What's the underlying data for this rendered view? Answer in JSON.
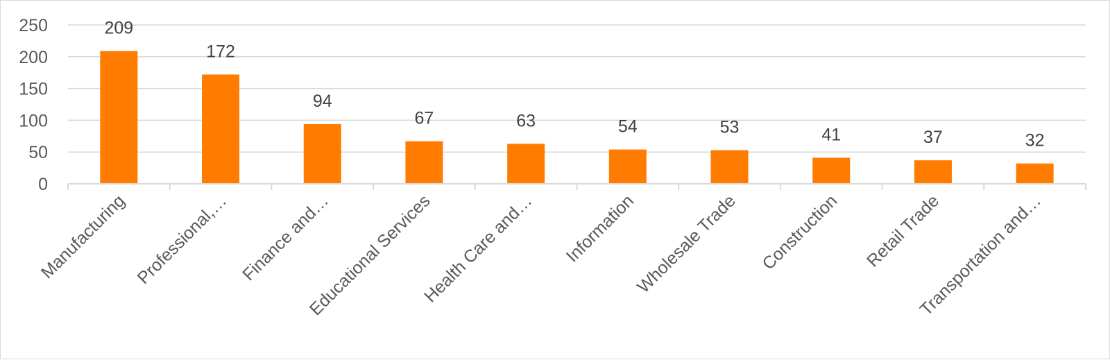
{
  "chart_data": {
    "type": "bar",
    "title": "",
    "xlabel": "",
    "ylabel": "",
    "categories": [
      "Manufacturing",
      "Professional,…",
      "Finance and…",
      "Educational Services",
      "Health Care and…",
      "Information",
      "Wholesale Trade",
      "Construction",
      "Retail Trade",
      "Transportation and…"
    ],
    "values": [
      209,
      172,
      94,
      67,
      63,
      54,
      53,
      41,
      37,
      32
    ],
    "data_labels": [
      "209",
      "172",
      "94",
      "67",
      "63",
      "54",
      "53",
      "41",
      "37",
      "32"
    ],
    "ylim": [
      0,
      250
    ],
    "yticks": [
      0,
      50,
      100,
      150,
      200,
      250
    ],
    "ytick_labels": [
      "0",
      "50",
      "100",
      "150",
      "200",
      "250"
    ],
    "grid": true,
    "legend": "none",
    "colors": {
      "bar": "#ff7c00",
      "grid": "#d9d9d9",
      "axis": "#d9d9d9"
    }
  }
}
